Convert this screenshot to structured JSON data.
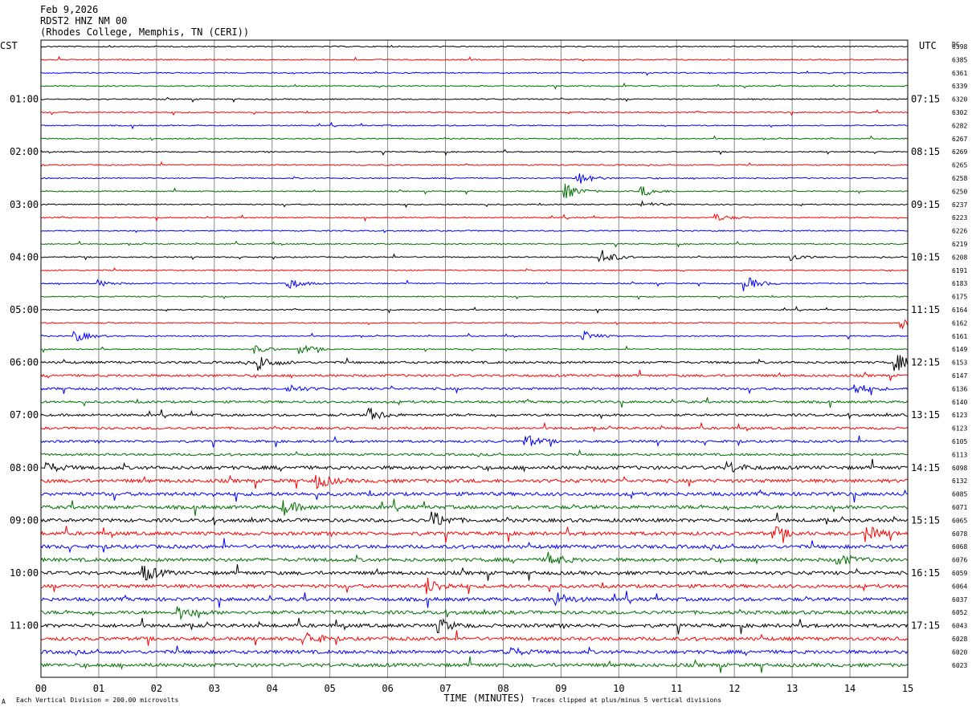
{
  "header": {
    "date": "Feb 9,2026",
    "station": "RDST2 HNZ NM 00",
    "location": "(Rhodes College, Memphis, TN (CERI))"
  },
  "chart_data": {
    "type": "line",
    "title": "",
    "left_timezone": "CST",
    "right_timezone": "UTC",
    "dc_label": "DC",
    "xlabel": "TIME (MINUTES)",
    "xlim": [
      0,
      15
    ],
    "x_ticks": [
      "00",
      "01",
      "02",
      "03",
      "04",
      "05",
      "06",
      "07",
      "08",
      "09",
      "10",
      "11",
      "12",
      "13",
      "14",
      "15"
    ],
    "grid": true,
    "minutes_per_trace": 15,
    "trace_count": 48,
    "trace_colors": [
      "#000000",
      "#ff0000",
      "#0000ff",
      "#007000"
    ],
    "left_hour_labels": [
      "01:00",
      "02:00",
      "03:00",
      "04:00",
      "05:00",
      "06:00",
      "07:00",
      "08:00",
      "09:00",
      "10:00",
      "11:00"
    ],
    "right_hour_labels": [
      "07:15",
      "08:15",
      "09:15",
      "10:15",
      "11:15",
      "12:15",
      "13:15",
      "14:15",
      "15:15",
      "16:15",
      "17:15"
    ],
    "dc_offsets": [
      6398,
      6385,
      6361,
      6339,
      6320,
      6302,
      6282,
      6267,
      6269,
      6265,
      6258,
      6250,
      6237,
      6223,
      6226,
      6219,
      6208,
      6191,
      6183,
      6175,
      6164,
      6162,
      6161,
      6149,
      6153,
      6147,
      6136,
      6140,
      6123,
      6123,
      6105,
      6113,
      6098,
      6132,
      6085,
      6071,
      6065,
      6078,
      6068,
      6076,
      6059,
      6064,
      6037,
      6052,
      6043,
      6028,
      6020,
      6023
    ],
    "noise_levels": [
      1,
      1,
      1,
      1,
      1,
      1,
      1,
      1,
      1,
      1,
      1,
      1,
      1,
      1,
      1,
      1,
      1,
      1,
      1,
      1,
      1,
      1,
      1,
      1,
      2,
      2,
      2,
      2,
      2,
      2,
      2,
      2,
      3,
      3,
      3,
      3,
      3,
      3,
      3,
      3,
      3,
      3,
      3,
      3,
      3,
      3,
      3,
      3
    ],
    "events": [
      {
        "trace": 10,
        "minute": 9.3,
        "amplitude": 8
      },
      {
        "trace": 11,
        "minute": 9.1,
        "amplitude": 9
      },
      {
        "trace": 11,
        "minute": 10.4,
        "amplitude": 7
      },
      {
        "trace": 12,
        "minute": 10.4,
        "amplitude": 4
      },
      {
        "trace": 13,
        "minute": 11.7,
        "amplitude": 4
      },
      {
        "trace": 16,
        "minute": 9.7,
        "amplitude": 10
      },
      {
        "trace": 16,
        "minute": 13.0,
        "amplitude": 4
      },
      {
        "trace": 18,
        "minute": 4.3,
        "amplitude": 7
      },
      {
        "trace": 18,
        "minute": 12.2,
        "amplitude": 9
      },
      {
        "trace": 18,
        "minute": 1.0,
        "amplitude": 4
      },
      {
        "trace": 21,
        "minute": 14.9,
        "amplitude": 7
      },
      {
        "trace": 22,
        "minute": 0.6,
        "amplitude": 7
      },
      {
        "trace": 22,
        "minute": 9.4,
        "amplitude": 6
      },
      {
        "trace": 23,
        "minute": 3.7,
        "amplitude": 5
      },
      {
        "trace": 23,
        "minute": 4.5,
        "amplitude": 6
      },
      {
        "trace": 24,
        "minute": 3.8,
        "amplitude": 9
      },
      {
        "trace": 24,
        "minute": 14.8,
        "amplitude": 11
      },
      {
        "trace": 26,
        "minute": 4.3,
        "amplitude": 5
      },
      {
        "trace": 26,
        "minute": 14.1,
        "amplitude": 7
      },
      {
        "trace": 28,
        "minute": 5.7,
        "amplitude": 8
      },
      {
        "trace": 30,
        "minute": 8.4,
        "amplitude": 8
      },
      {
        "trace": 32,
        "minute": 0.1,
        "amplitude": 6
      },
      {
        "trace": 32,
        "minute": 11.9,
        "amplitude": 7
      },
      {
        "trace": 33,
        "minute": 4.8,
        "amplitude": 8
      },
      {
        "trace": 35,
        "minute": 4.2,
        "amplitude": 9
      },
      {
        "trace": 36,
        "minute": 6.8,
        "amplitude": 10
      },
      {
        "trace": 37,
        "minute": 12.7,
        "amplitude": 8
      },
      {
        "trace": 37,
        "minute": 14.3,
        "amplitude": 9
      },
      {
        "trace": 39,
        "minute": 8.8,
        "amplitude": 8
      },
      {
        "trace": 39,
        "minute": 13.8,
        "amplitude": 8
      },
      {
        "trace": 40,
        "minute": 1.8,
        "amplitude": 10
      },
      {
        "trace": 41,
        "minute": 6.7,
        "amplitude": 9
      },
      {
        "trace": 42,
        "minute": 8.9,
        "amplitude": 9
      },
      {
        "trace": 43,
        "minute": 2.4,
        "amplitude": 8
      },
      {
        "trace": 44,
        "minute": 6.9,
        "amplitude": 8
      },
      {
        "trace": 45,
        "minute": 4.6,
        "amplitude": 8
      },
      {
        "trace": 46,
        "minute": 8.0,
        "amplitude": 9
      }
    ]
  },
  "footer": {
    "scale_note": "Each Vertical Division =  200.00 microvolts",
    "clip_note": "Traces clipped at plus/minus 5 vertical divisions"
  }
}
